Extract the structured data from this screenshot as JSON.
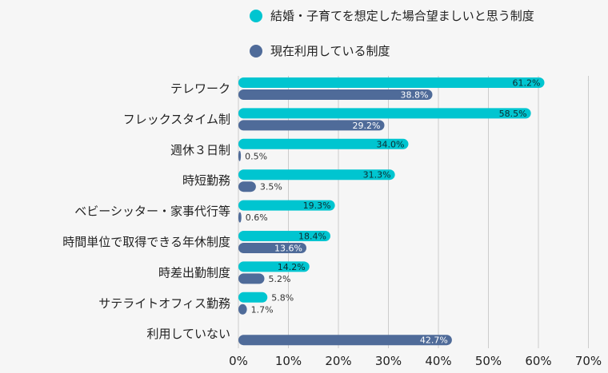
{
  "chart_data": {
    "type": "bar",
    "orientation": "horizontal",
    "categories": [
      "テレワーク",
      "フレックスタイム制",
      "週休３日制",
      "時短勤務",
      "ベビーシッター・家事代行等",
      "時間単位で取得できる年休制度",
      "時差出勤制度",
      "サテライトオフィス勤務",
      "利用していない"
    ],
    "series": [
      {
        "name": "結婚・子育てを想定した場合望ましいと思う制度",
        "color": "#00c5d0",
        "values": [
          61.2,
          58.5,
          34.0,
          31.3,
          19.3,
          18.4,
          14.2,
          5.8,
          null
        ],
        "labels": [
          "61.2%",
          "58.5%",
          "34.0%",
          "31.3%",
          "19.3%",
          "18.4%",
          "14.2%",
          "5.8%",
          ""
        ]
      },
      {
        "name": "現在利用している制度",
        "color": "#4f6b99",
        "values": [
          38.8,
          29.2,
          0.5,
          3.5,
          0.6,
          13.6,
          5.2,
          1.7,
          42.7
        ],
        "labels": [
          "38.8%",
          "29.2%",
          "0.5%",
          "3.5%",
          "0.6%",
          "13.6%",
          "5.2%",
          "1.7%",
          "42.7%"
        ]
      }
    ],
    "xlim": [
      0,
      70
    ],
    "xticks": [
      0,
      10,
      20,
      30,
      40,
      50,
      60,
      70
    ],
    "xtick_labels": [
      "0%",
      "10%",
      "20%",
      "30%",
      "40%",
      "50%",
      "60%",
      "70%"
    ],
    "grid": true,
    "legend_position": "top"
  }
}
